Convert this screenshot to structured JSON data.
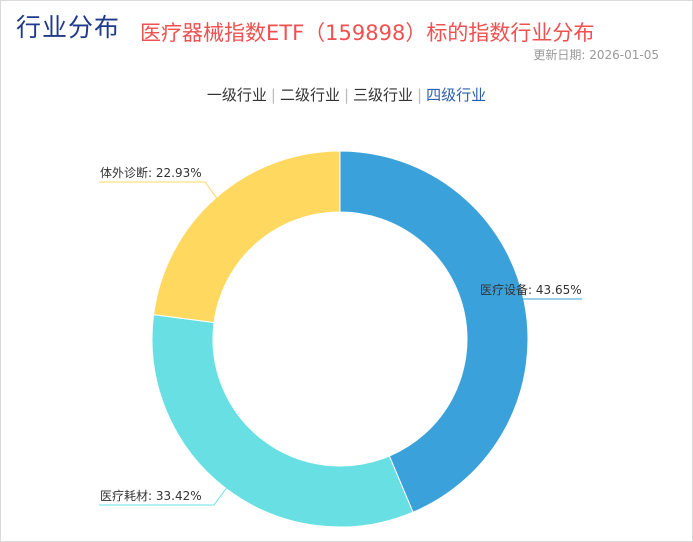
{
  "header": {
    "section_title": "行业分布",
    "chart_title": "医疗器械指数ETF（159898）标的指数行业分布",
    "update_date": "更新日期: 2026-01-05"
  },
  "tabs": [
    {
      "label": "一级行业",
      "active": false
    },
    {
      "label": "二级行业",
      "active": false
    },
    {
      "label": "三级行业",
      "active": false
    },
    {
      "label": "四级行业",
      "active": true
    }
  ],
  "chart_data": {
    "type": "pie",
    "donut": true,
    "title": "医疗器械指数ETF（159898）标的指数行业分布",
    "unit": "%",
    "slices": [
      {
        "name": "医疗设备",
        "value": 43.65,
        "label": "医疗设备: 43.65%",
        "color": "#3aa1db"
      },
      {
        "name": "医疗耗材",
        "value": 33.42,
        "label": "医疗耗材: 33.42%",
        "color": "#68e0e3"
      },
      {
        "name": "体外诊断",
        "value": 22.93,
        "label": "体外诊断: 22.93%",
        "color": "#ffd95f"
      }
    ]
  }
}
